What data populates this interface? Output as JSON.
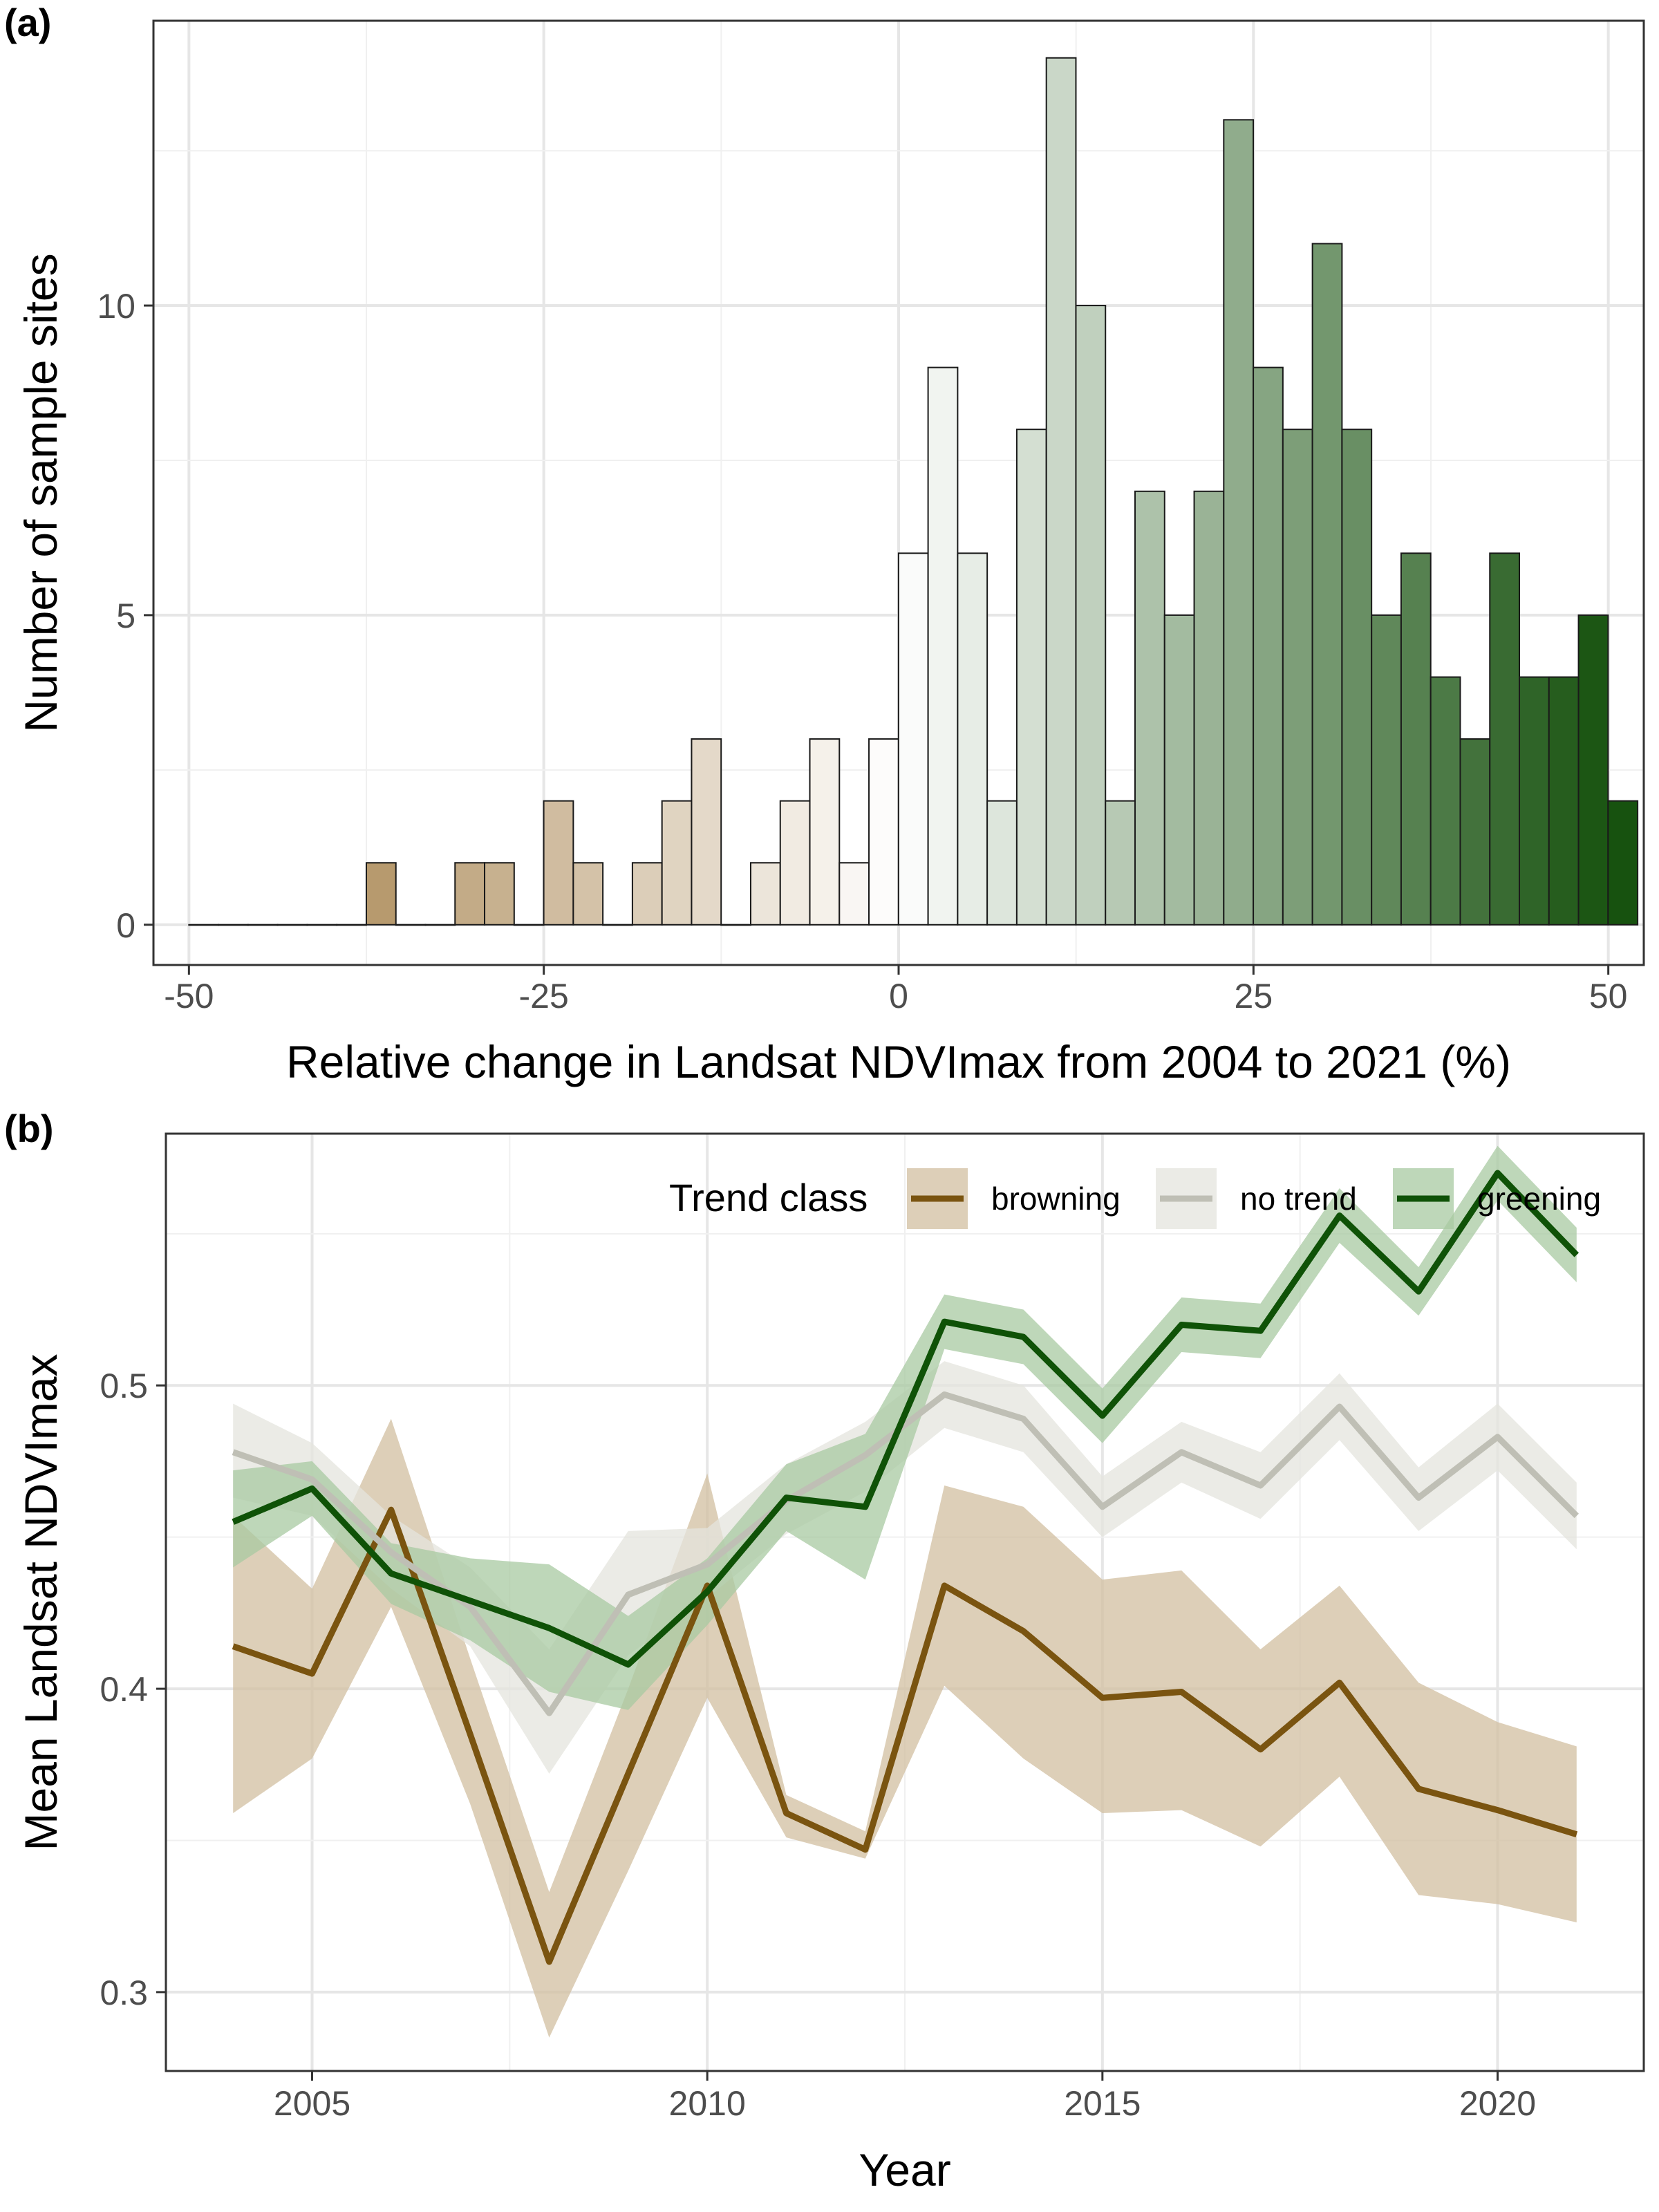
{
  "chart_data": [
    {
      "panel_label": "(a)",
      "type": "bar",
      "xlabel": "Relative change in Landsat NDVImax from 2004 to 2021 (%)",
      "ylabel": "Number of sample sites",
      "xlim": [
        -52.5,
        52.5
      ],
      "ylim": [
        -0.65,
        14.6
      ],
      "x_ticks": [
        -50,
        -25,
        0,
        25,
        50
      ],
      "x_tick_labels": [
        "-50",
        "-25",
        "0",
        "25",
        "50"
      ],
      "y_ticks": [
        0,
        5,
        10
      ],
      "y_tick_labels": [
        "0",
        "5",
        "10"
      ],
      "grid": true,
      "bin_width": 2.083,
      "x_start": -50,
      "values": [
        0,
        0,
        0,
        0,
        0,
        0,
        1,
        0,
        0,
        1,
        1,
        0,
        2,
        1,
        0,
        1,
        2,
        3,
        0,
        1,
        2,
        3,
        1,
        3,
        6,
        9,
        6,
        2,
        8,
        14,
        10,
        2,
        7,
        5,
        7,
        13,
        9,
        8,
        11,
        8,
        5,
        6,
        4,
        3,
        6,
        4,
        4,
        5,
        2
      ],
      "color_scale": {
        "low": "#9c7438",
        "mid": "#ffffff",
        "high": "#17520f",
        "low_value": -50,
        "mid_value": 0,
        "high_value": 50
      }
    },
    {
      "panel_label": "(b)",
      "type": "line",
      "xlabel": "Year",
      "ylabel": "Mean Landsat NDVImax",
      "xlim": [
        2003.15,
        2021.85
      ],
      "ylim": [
        0.274,
        0.583
      ],
      "x_ticks": [
        2005,
        2010,
        2015,
        2020
      ],
      "x_tick_labels": [
        "2005",
        "2010",
        "2015",
        "2020"
      ],
      "y_ticks": [
        0.3,
        0.4,
        0.5
      ],
      "y_tick_labels": [
        "0.3",
        "0.4",
        "0.5"
      ],
      "grid": true,
      "legend": {
        "title": "Trend class",
        "position": "top-right"
      },
      "x": [
        2004,
        2005,
        2006,
        2007,
        2008,
        2009,
        2010,
        2011,
        2012,
        2013,
        2014,
        2015,
        2016,
        2017,
        2018,
        2019,
        2020,
        2021
      ],
      "series": [
        {
          "name": "browning",
          "color": "#7a5410",
          "band_color": "#d1bfa0",
          "values": [
            0.414,
            0.405,
            0.459,
            0.385,
            0.31,
            0.372,
            0.434,
            0.359,
            0.347,
            0.434,
            0.419,
            0.397,
            0.399,
            0.38,
            0.402,
            0.367,
            0.36,
            0.352
          ],
          "lower": [
            0.359,
            0.377,
            0.427,
            0.362,
            0.285,
            0.34,
            0.397,
            0.351,
            0.344,
            0.401,
            0.377,
            0.359,
            0.36,
            0.348,
            0.371,
            0.332,
            0.329,
            0.323
          ],
          "upper": [
            0.457,
            0.433,
            0.489,
            0.41,
            0.333,
            0.4,
            0.471,
            0.365,
            0.353,
            0.467,
            0.46,
            0.436,
            0.439,
            0.413,
            0.434,
            0.402,
            0.389,
            0.381
          ]
        },
        {
          "name": "no trend",
          "color": "#bfbfb5",
          "band_color": "#e4e4de",
          "values": [
            0.478,
            0.469,
            0.445,
            0.427,
            0.392,
            0.431,
            0.441,
            0.462,
            0.477,
            0.497,
            0.489,
            0.46,
            0.478,
            0.467,
            0.493,
            0.463,
            0.483,
            0.457
          ],
          "lower": [
            0.463,
            0.457,
            0.433,
            0.414,
            0.372,
            0.411,
            0.43,
            0.451,
            0.465,
            0.486,
            0.478,
            0.45,
            0.468,
            0.456,
            0.482,
            0.452,
            0.472,
            0.446
          ],
          "upper": [
            0.494,
            0.481,
            0.457,
            0.44,
            0.413,
            0.452,
            0.453,
            0.474,
            0.488,
            0.508,
            0.5,
            0.47,
            0.488,
            0.478,
            0.504,
            0.473,
            0.494,
            0.468
          ]
        },
        {
          "name": "greening",
          "color": "#0f5207",
          "band_color": "#a8c9a2",
          "values": [
            0.455,
            0.466,
            0.438,
            0.429,
            0.42,
            0.408,
            0.432,
            0.463,
            0.46,
            0.521,
            0.516,
            0.49,
            0.52,
            0.518,
            0.556,
            0.531,
            0.57,
            0.543
          ],
          "lower": [
            0.44,
            0.457,
            0.428,
            0.416,
            0.399,
            0.393,
            0.421,
            0.452,
            0.436,
            0.512,
            0.507,
            0.481,
            0.511,
            0.509,
            0.547,
            0.523,
            0.561,
            0.534
          ],
          "upper": [
            0.472,
            0.475,
            0.448,
            0.443,
            0.441,
            0.424,
            0.443,
            0.474,
            0.484,
            0.53,
            0.525,
            0.499,
            0.529,
            0.527,
            0.565,
            0.539,
            0.579,
            0.552
          ]
        }
      ]
    }
  ]
}
